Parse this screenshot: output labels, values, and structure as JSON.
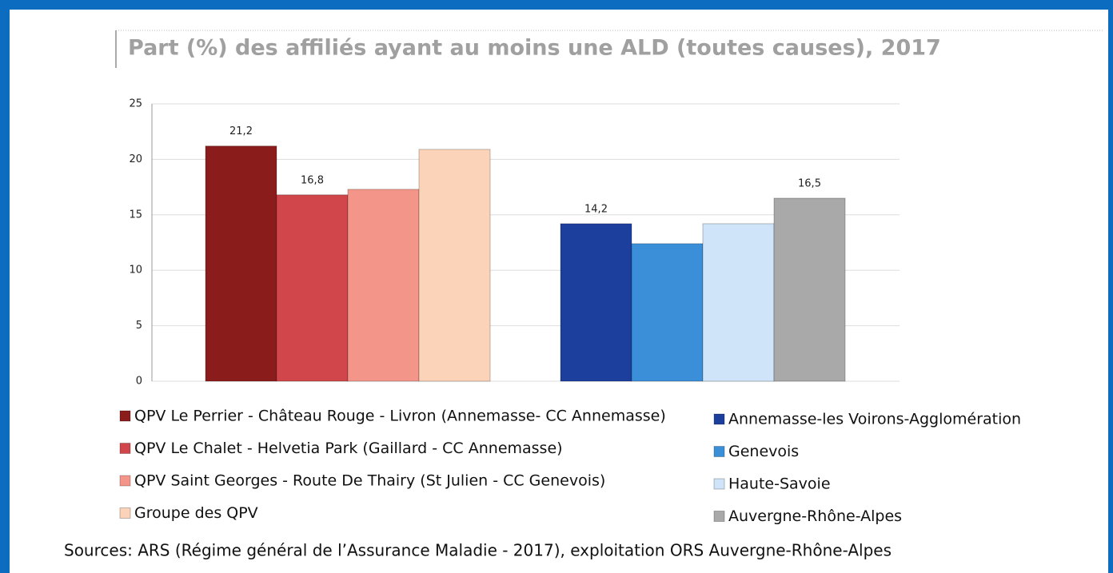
{
  "chart_data": {
    "type": "bar",
    "title": "Part (%) des affiliés ayant au moins une ALD (toutes causes), 2017",
    "source": "Sources: ARS (Régime général de l’Assurance Maladie - 2017), exploitation ORS Auvergne-Rhône-Alpes",
    "ylim": [
      0,
      25
    ],
    "yticks": [
      0,
      5,
      10,
      15,
      20,
      25
    ],
    "grid": true,
    "series": [
      {
        "name": "QPV Le Perrier - Château Rouge - Livron (Annemasse- CC Annemasse)",
        "color": "#8b1c1c",
        "values": [
          21.2
        ],
        "value_labels": [
          "21,2"
        ]
      },
      {
        "name": "QPV Le Chalet - Helvetia Park (Gaillard - CC Annemasse)",
        "color": "#d0464a",
        "values": [
          16.8
        ],
        "value_labels": [
          "16,8"
        ]
      },
      {
        "name": "QPV Saint Georges - Route De Thairy (St Julien - CC Genevois)",
        "color": "#f4958a",
        "values": [
          17.3
        ]
      },
      {
        "name": "Groupe des QPV",
        "color": "#fbd3b8",
        "values": [
          20.9
        ]
      },
      {
        "name": "Annemasse-les Voirons-Agglomération",
        "color": "#1c3f9e",
        "values": [
          14.2
        ],
        "value_labels": [
          "14,2"
        ]
      },
      {
        "name": "Genevois",
        "color": "#3a8fd8",
        "values": [
          12.4
        ]
      },
      {
        "name": "Haute-Savoie",
        "color": "#cfe4f8",
        "values": [
          14.2
        ]
      },
      {
        "name": "Auvergne-Rhône-Alpes",
        "color": "#a9a9a9",
        "values": [
          16.5
        ],
        "value_labels": [
          "16,5"
        ]
      }
    ]
  }
}
